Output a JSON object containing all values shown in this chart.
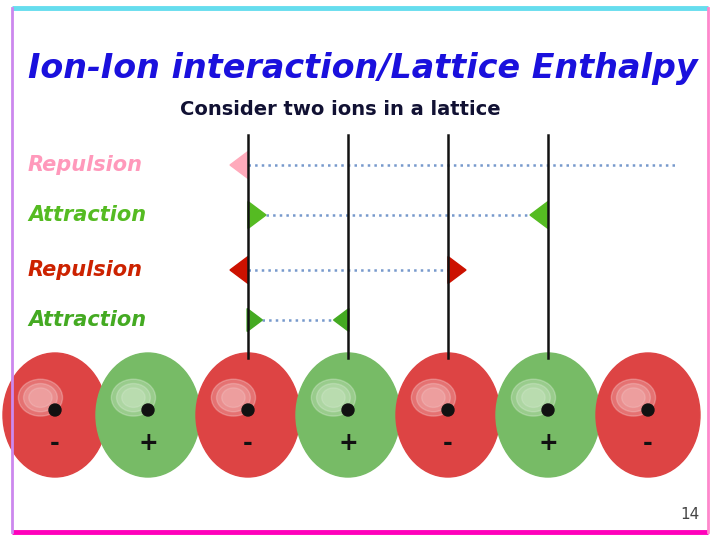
{
  "title": "Ion-Ion interaction/Lattice Enthalpy",
  "subtitle": "Consider two ions in a lattice",
  "title_color": "#1a10dd",
  "subtitle_color": "#111133",
  "bg_color": "#ffffff",
  "page_number": "14",
  "label_repulsion1": "Repulsion",
  "label_attraction1": "Attraction",
  "label_repulsion2": "Repulsion",
  "label_attraction2": "Attraction",
  "label_color_repulsion1": "#ff99bb",
  "label_color_attraction1": "#55bb22",
  "label_color_repulsion2": "#cc2200",
  "label_color_attraction2": "#44aa22",
  "arrow_pink_color": "#ffaabb",
  "arrow_green1_color": "#55bb22",
  "arrow_red_color": "#cc1100",
  "arrow_green2_color": "#44aa22",
  "dotted_line_color": "#7799cc",
  "vertical_line_color": "#111111",
  "ion_neg_color": "#dd4444",
  "ion_pos_color": "#77bb66",
  "border_top": "#66ddee",
  "border_bottom": "#ff00bb",
  "border_left": "#cc88ee",
  "border_right": "#ff88cc"
}
